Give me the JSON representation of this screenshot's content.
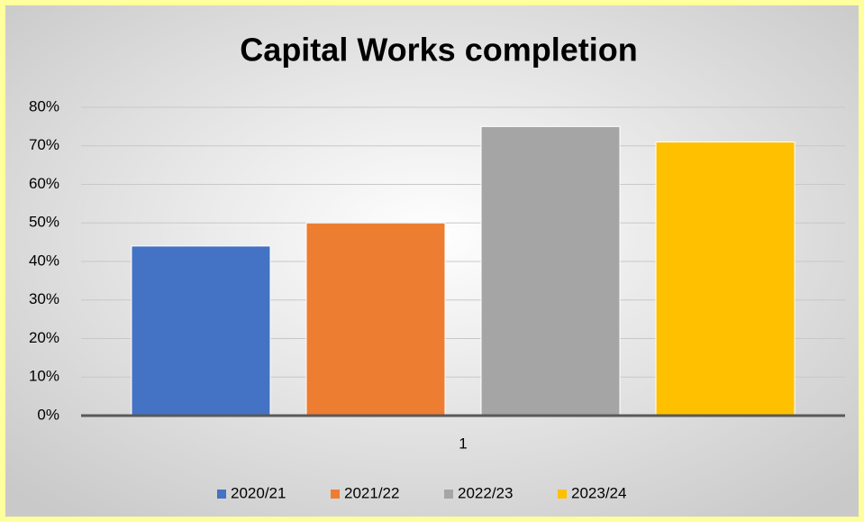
{
  "chart_data": {
    "type": "bar",
    "title": "Capital Works completion",
    "categories": [
      "1"
    ],
    "series": [
      {
        "name": "2020/21",
        "color": "#4472c4",
        "values": [
          44
        ]
      },
      {
        "name": "2021/22",
        "color": "#ed7d31",
        "values": [
          50
        ]
      },
      {
        "name": "2022/23",
        "color": "#a5a5a5",
        "values": [
          75
        ]
      },
      {
        "name": "2023/24",
        "color": "#ffc000",
        "values": [
          71
        ]
      }
    ],
    "ylim": [
      0,
      80
    ],
    "yticks": [
      {
        "value": 0,
        "label": "0%"
      },
      {
        "value": 10,
        "label": "10%"
      },
      {
        "value": 20,
        "label": "20%"
      },
      {
        "value": 30,
        "label": "30%"
      },
      {
        "value": 40,
        "label": "40%"
      },
      {
        "value": 50,
        "label": "50%"
      },
      {
        "value": 60,
        "label": "60%"
      },
      {
        "value": 70,
        "label": "70%"
      },
      {
        "value": 80,
        "label": "80%"
      }
    ],
    "grid": true,
    "legend": "bottom"
  }
}
